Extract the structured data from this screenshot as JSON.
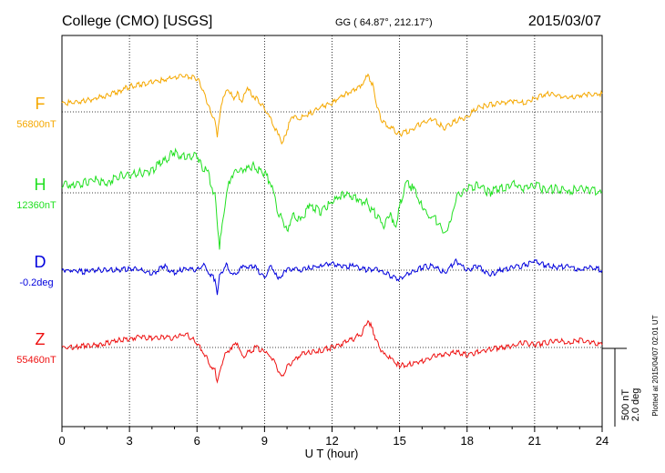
{
  "header": {
    "station": "College (CMO)  [USGS]",
    "coords": "GG ( 64.87°, 212.17°)",
    "date": "2015/03/07"
  },
  "side_note": "Plotted at 2015/04/07 02:01  UT",
  "scale_bar": {
    "nt_label": "500 nT",
    "deg_label": "2.0 deg"
  },
  "chart_data": {
    "type": "line",
    "xlabel": "U T (hour)",
    "xlim": [
      0,
      24
    ],
    "xticks": [
      "0",
      "3",
      "6",
      "9",
      "12",
      "15",
      "18",
      "21",
      "24"
    ],
    "grid": true,
    "y_units_per_step": "500 nT",
    "series": [
      {
        "name": "F",
        "baseline_label": "56800nT",
        "color": "#f5a800",
        "x": [
          0,
          0.5,
          1,
          1.5,
          2,
          2.5,
          3,
          3.5,
          4,
          4.5,
          5,
          5.5,
          6,
          6.2,
          6.4,
          6.6,
          6.8,
          6.9,
          7,
          7.2,
          7.4,
          7.6,
          7.8,
          8,
          8.2,
          8.5,
          9,
          9.3,
          9.6,
          9.8,
          10,
          10.2,
          10.5,
          11,
          11.5,
          12,
          12.5,
          13,
          13.3,
          13.6,
          13.8,
          14,
          14.2,
          14.5,
          15,
          15.5,
          16,
          16.5,
          17,
          17.5,
          18,
          18.5,
          19,
          19.5,
          20,
          20.5,
          21,
          21.5,
          22,
          22.5,
          23,
          23.5,
          24
        ],
        "y": [
          10,
          10,
          12,
          15,
          18,
          22,
          28,
          30,
          33,
          35,
          38,
          40,
          37,
          28,
          15,
          0,
          -10,
          -30,
          -5,
          20,
          25,
          15,
          20,
          10,
          25,
          18,
          5,
          -10,
          -25,
          -35,
          -20,
          -5,
          -8,
          -2,
          5,
          10,
          18,
          25,
          30,
          40,
          30,
          5,
          -10,
          -15,
          -25,
          -20,
          -12,
          -8,
          -18,
          -10,
          -5,
          5,
          8,
          10,
          12,
          10,
          15,
          20,
          18,
          15,
          18,
          20,
          20
        ]
      },
      {
        "name": "H",
        "baseline_label": "12360nT",
        "color": "#22e022",
        "x": [
          0,
          0.5,
          1,
          1.5,
          2,
          2.5,
          3,
          3.5,
          4,
          4.5,
          5,
          5.5,
          6,
          6.2,
          6.5,
          6.8,
          7,
          7.2,
          7.5,
          8,
          8.5,
          9,
          9.3,
          9.6,
          10,
          10.3,
          10.6,
          11,
          11.5,
          12,
          12.5,
          13,
          13.5,
          14,
          14.3,
          14.6,
          14.8,
          15,
          15.3,
          15.6,
          16,
          16.3,
          16.6,
          17,
          17.3,
          17.5,
          18,
          18.5,
          19,
          19.5,
          20,
          20.5,
          21,
          21.5,
          22,
          22.5,
          23,
          23.5,
          24
        ],
        "y": [
          10,
          8,
          12,
          15,
          10,
          18,
          20,
          22,
          25,
          35,
          45,
          38,
          42,
          30,
          20,
          -5,
          -60,
          -20,
          20,
          25,
          30,
          22,
          10,
          -20,
          -40,
          -25,
          -30,
          -15,
          -20,
          -10,
          0,
          -5,
          -10,
          -25,
          -35,
          -20,
          -40,
          -15,
          10,
          5,
          -15,
          -25,
          -30,
          -45,
          -30,
          -5,
          5,
          8,
          0,
          5,
          10,
          5,
          8,
          3,
          5,
          2,
          5,
          3,
          0
        ]
      },
      {
        "name": "D",
        "baseline_label": "-0.2deg",
        "color": "#0000dd",
        "x": [
          0,
          0.5,
          1,
          1.5,
          2,
          2.5,
          3,
          3.5,
          4,
          4.5,
          5,
          5.5,
          6,
          6.3,
          6.6,
          6.8,
          6.9,
          7,
          7.3,
          7.6,
          8,
          8.5,
          9,
          9.3,
          9.6,
          10,
          10.3,
          10.6,
          11,
          11.5,
          12,
          12.5,
          13,
          13.5,
          14,
          14.5,
          15,
          15.5,
          16,
          16.5,
          17,
          17.5,
          18,
          18.5,
          19,
          19.5,
          20,
          20.5,
          21,
          21.5,
          22,
          22.5,
          23,
          23.5,
          24
        ],
        "y": [
          0,
          0,
          -2,
          0,
          0,
          0,
          2,
          0,
          -5,
          5,
          -3,
          2,
          0,
          5,
          -5,
          -10,
          -25,
          -5,
          5,
          -5,
          3,
          5,
          -8,
          5,
          -10,
          0,
          2,
          0,
          3,
          5,
          8,
          3,
          5,
          0,
          2,
          -5,
          -10,
          -3,
          3,
          5,
          -3,
          10,
          0,
          5,
          -5,
          0,
          3,
          5,
          10,
          5,
          3,
          5,
          0,
          3,
          0
        ]
      },
      {
        "name": "Z",
        "baseline_label": "55460nT",
        "color": "#ee1111",
        "x": [
          0,
          0.5,
          1,
          1.5,
          2,
          2.5,
          3,
          3.5,
          4,
          4.5,
          5,
          5.5,
          6,
          6.3,
          6.6,
          6.8,
          6.9,
          7,
          7.2,
          7.5,
          7.8,
          8,
          8.3,
          8.6,
          9,
          9.3,
          9.6,
          9.8,
          10,
          10.3,
          10.6,
          11,
          11.5,
          12,
          12.5,
          13,
          13.3,
          13.6,
          13.8,
          14,
          14.3,
          14.6,
          15,
          15.5,
          16,
          16.5,
          17,
          17.5,
          18,
          18.5,
          19,
          19.5,
          20,
          20.5,
          21,
          21.5,
          22,
          22.5,
          23,
          23.5,
          24
        ],
        "y": [
          0,
          0,
          2,
          3,
          5,
          8,
          10,
          12,
          10,
          12,
          10,
          15,
          5,
          -5,
          -20,
          -25,
          -38,
          -30,
          -10,
          0,
          5,
          -10,
          -5,
          0,
          -5,
          -10,
          -25,
          -33,
          -20,
          -15,
          -8,
          -5,
          -3,
          0,
          5,
          10,
          15,
          30,
          20,
          5,
          -8,
          -12,
          -20,
          -18,
          -15,
          -10,
          -8,
          -5,
          -8,
          -5,
          -2,
          0,
          2,
          5,
          3,
          5,
          8,
          5,
          8,
          5,
          3
        ]
      }
    ]
  }
}
